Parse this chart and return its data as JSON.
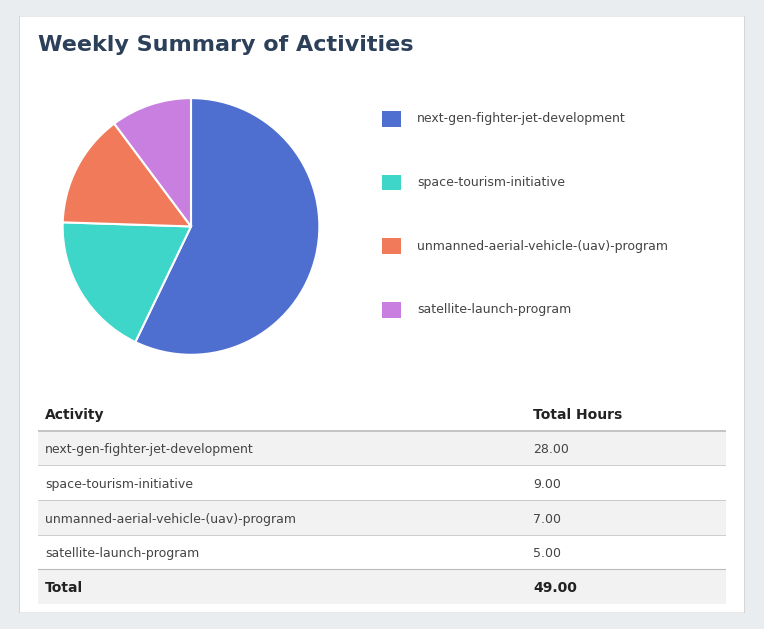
{
  "title": "Weekly Summary of Activities",
  "pie_labels": [
    "next-gen-fighter-jet-development",
    "space-tourism-initiative",
    "unmanned-aerial-vehicle-(uav)-program",
    "satellite-launch-program"
  ],
  "pie_values": [
    28,
    9,
    7,
    5
  ],
  "pie_colors": [
    "#4F6FD0",
    "#3DD6C8",
    "#F07A5A",
    "#C97FE0"
  ],
  "table_headers": [
    "Activity",
    "Total Hours"
  ],
  "table_rows": [
    [
      "next-gen-fighter-jet-development",
      "28.00"
    ],
    [
      "space-tourism-initiative",
      "9.00"
    ],
    [
      "unmanned-aerial-vehicle-(uav)-program",
      "7.00"
    ],
    [
      "satellite-launch-program",
      "5.00"
    ]
  ],
  "table_total": [
    "Total",
    "49.00"
  ],
  "bg_color": "#eaedf0",
  "card_color": "#ffffff",
  "title_color": "#2d4059",
  "legend_text_color": "#444444",
  "table_header_color": "#222222",
  "table_row_color": "#444444",
  "row_alt_color": "#f2f2f2",
  "row_white_color": "#ffffff",
  "divider_color": "#bbbbbb",
  "title_fontsize": 16,
  "legend_fontsize": 9,
  "table_header_fontsize": 10,
  "table_row_fontsize": 9
}
